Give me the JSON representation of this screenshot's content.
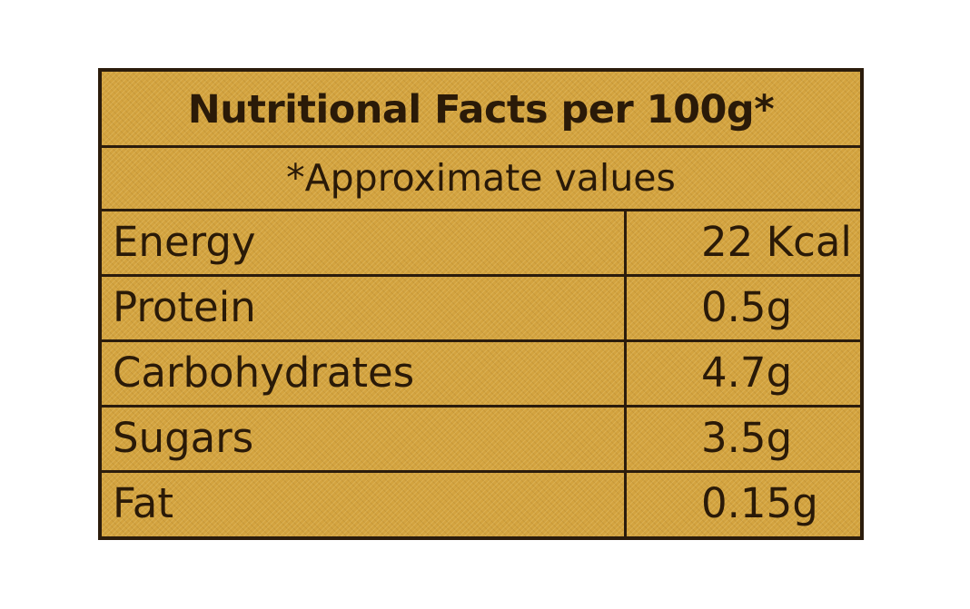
{
  "label": {
    "title": "Nutritional Facts per 100g*",
    "subtitle": "*Approximate values",
    "rows": [
      {
        "nutrient": "Energy",
        "amount": "22 Kcal"
      },
      {
        "nutrient": "Protein",
        "amount": "0.5g"
      },
      {
        "nutrient": "Carbohydrates",
        "amount": "4.7g"
      },
      {
        "nutrient": "Sugars",
        "amount": "3.5g"
      },
      {
        "nutrient": "Fat",
        "amount": "0.15g"
      }
    ]
  },
  "colors": {
    "panel": "#d3a33f",
    "ink": "#2a1a08",
    "border": "#2b1c0c"
  }
}
